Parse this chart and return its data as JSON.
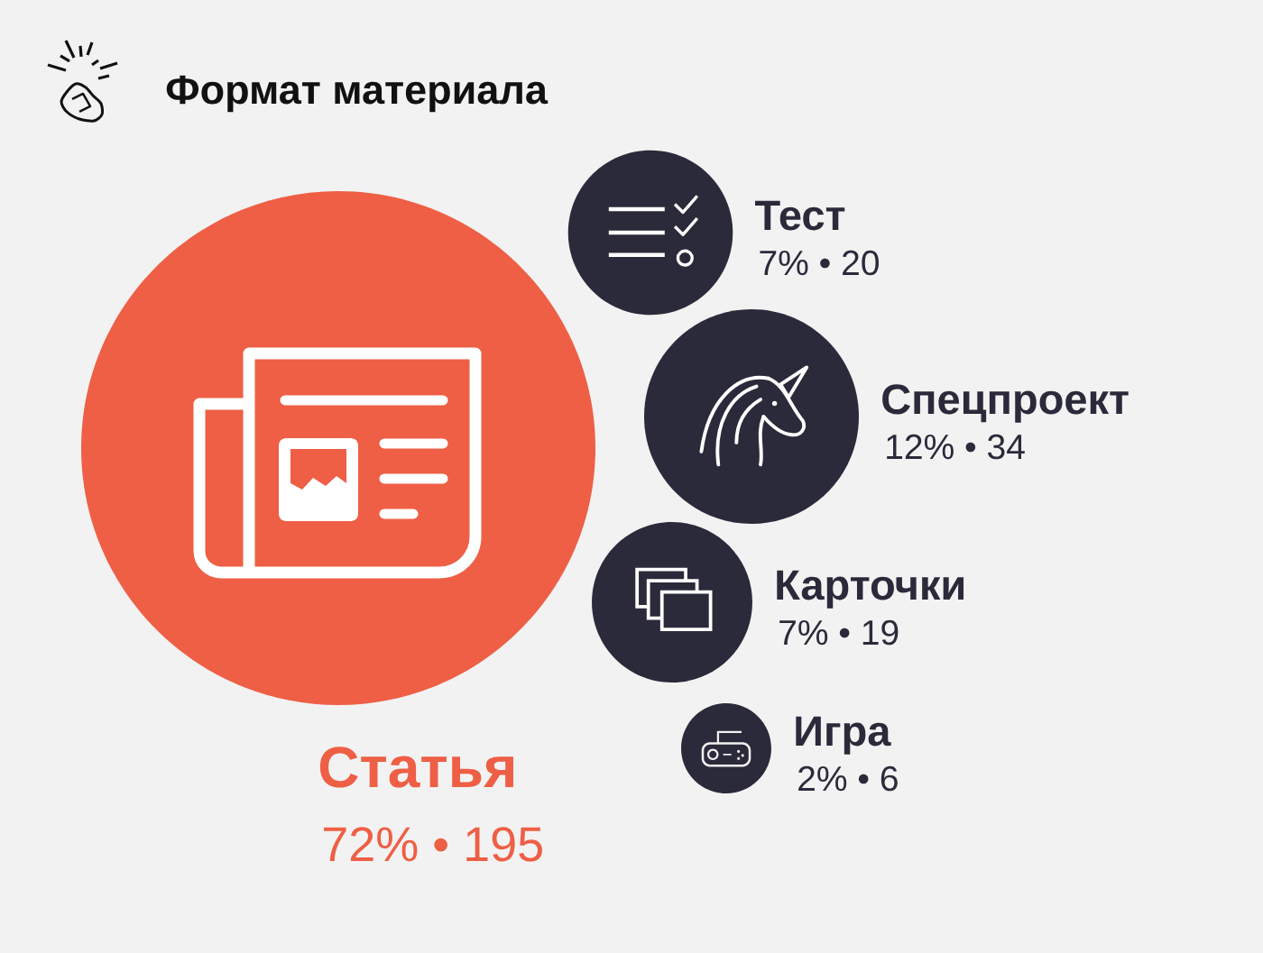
{
  "chart_data": {
    "type": "other",
    "title": "Формат материала",
    "categories": [
      "Статья",
      "Тест",
      "Спецпроект",
      "Карточки",
      "Игра"
    ],
    "values": [
      195,
      20,
      34,
      19,
      6
    ],
    "value_labels": [
      "72% • 195",
      "7% • 20",
      "12% • 34",
      "7% • 19",
      "2% • 6"
    ],
    "colors": [
      "#ee5f45",
      "#2b2a3a",
      "#2b2a3a",
      "#2b2a3a",
      "#2b2a3a"
    ]
  }
}
